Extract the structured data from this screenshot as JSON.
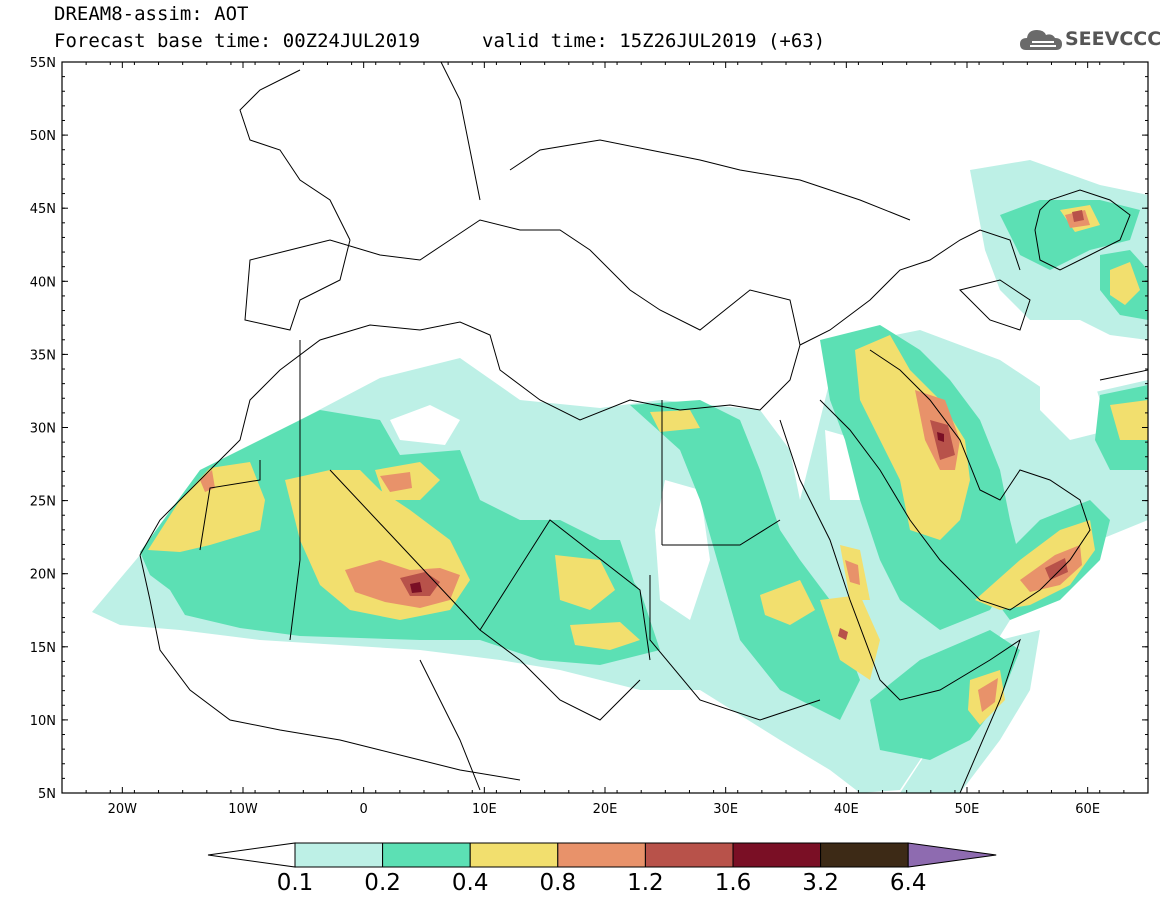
{
  "header": {
    "title": "DREAM8-assim: AOT",
    "base_time": "Forecast base time: 00Z24JUL2019",
    "valid_time": "valid time: 15Z26JUL2019 (+63)"
  },
  "logo": {
    "text": "SEEVCCC",
    "icon": "cloud-icon"
  },
  "map": {
    "lon_range": [
      -25,
      65
    ],
    "lat_range": [
      5,
      55
    ],
    "lat_labels": [
      "55N",
      "50N",
      "45N",
      "40N",
      "35N",
      "30N",
      "25N",
      "20N",
      "15N",
      "10N",
      "5N"
    ],
    "lon_labels": [
      "20W",
      "10W",
      "0",
      "10E",
      "20E",
      "30E",
      "40E",
      "50E",
      "60E"
    ]
  },
  "colorbar": {
    "levels": [
      "0.1",
      "0.2",
      "0.4",
      "0.8",
      "1.2",
      "1.6",
      "3.2",
      "6.4"
    ],
    "colors": [
      "#bdf0e6",
      "#5ce0b4",
      "#f2df6e",
      "#e8926a",
      "#b8524a",
      "#7a0f25",
      "#3d2a16",
      "#8e6bb0"
    ],
    "under_color": "#ffffff"
  }
}
